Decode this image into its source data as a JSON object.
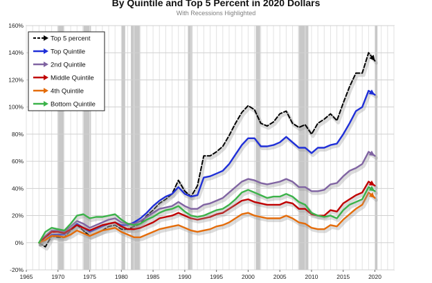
{
  "chart_data": {
    "type": "line",
    "title": "By Quintile and Top 5 Percent in 2020 Dollars",
    "subtitle": "With Recessions Highlighted",
    "xlabel": "",
    "ylabel": "",
    "xlim": [
      1965,
      2023
    ],
    "ylim": [
      -20,
      160
    ],
    "x_ticks": [
      1965,
      1970,
      1975,
      1980,
      1985,
      1990,
      1995,
      2000,
      2005,
      2010,
      2015,
      2020
    ],
    "y_ticks": [
      -20,
      0,
      20,
      40,
      60,
      80,
      100,
      120,
      140,
      160
    ],
    "y_tick_labels": [
      "-20%",
      "0%",
      "20%",
      "40%",
      "60%",
      "80%",
      "100%",
      "120%",
      "140%",
      "160%"
    ],
    "grid": true,
    "legend_position": "top-left",
    "recessions": [
      [
        1969.9,
        1970.9
      ],
      [
        1973.9,
        1975.2
      ],
      [
        1980.0,
        1980.6
      ],
      [
        1981.5,
        1982.9
      ],
      [
        1990.5,
        1991.2
      ],
      [
        2001.2,
        2001.9
      ],
      [
        2007.9,
        2009.5
      ],
      [
        2020.0,
        2020.4
      ]
    ],
    "series": [
      {
        "name": "Top 5 percent",
        "color": "#000000",
        "dashed": true,
        "x": [
          1967,
          1968,
          1969,
          1970,
          1971,
          1972,
          1973,
          1974,
          1975,
          1976,
          1977,
          1978,
          1979,
          1980,
          1981,
          1982,
          1983,
          1984,
          1985,
          1986,
          1987,
          1988,
          1989,
          1990,
          1991,
          1992,
          1993,
          1994,
          1995,
          1996,
          1997,
          1998,
          1999,
          2000,
          2001,
          2002,
          2003,
          2004,
          2005,
          2006,
          2007,
          2008,
          2009,
          2010,
          2011,
          2012,
          2013,
          2014,
          2015,
          2016,
          2017,
          2018,
          2019,
          2020
        ],
        "values": [
          0,
          -3,
          5,
          4,
          4,
          9,
          13,
          9,
          5,
          7,
          9,
          12,
          13,
          10,
          10,
          12,
          14,
          20,
          24,
          29,
          32,
          36,
          46,
          38,
          34,
          42,
          64,
          64,
          67,
          71,
          79,
          88,
          96,
          101,
          98,
          88,
          86,
          89,
          95,
          97,
          88,
          85,
          87,
          80,
          88,
          91,
          95,
          90,
          103,
          115,
          125,
          125,
          140,
          134
        ]
      },
      {
        "name": "Top Quintile",
        "color": "#1f2fd8",
        "dashed": false,
        "x": [
          1967,
          1968,
          1969,
          1970,
          1971,
          1972,
          1973,
          1974,
          1975,
          1976,
          1977,
          1978,
          1979,
          1980,
          1981,
          1982,
          1983,
          1984,
          1985,
          1986,
          1987,
          1988,
          1989,
          1990,
          1991,
          1992,
          1993,
          1994,
          1995,
          1996,
          1997,
          1998,
          1999,
          2000,
          2001,
          2002,
          2003,
          2004,
          2005,
          2006,
          2007,
          2008,
          2009,
          2010,
          2011,
          2012,
          2013,
          2014,
          2015,
          2016,
          2017,
          2018,
          2019,
          2020
        ],
        "values": [
          0,
          2,
          6,
          6,
          6,
          10,
          14,
          11,
          8,
          10,
          12,
          14,
          15,
          13,
          13,
          15,
          18,
          22,
          27,
          31,
          34,
          36,
          41,
          36,
          34,
          35,
          48,
          49,
          51,
          53,
          58,
          65,
          72,
          77,
          77,
          71,
          71,
          72,
          74,
          78,
          74,
          70,
          70,
          66,
          70,
          70,
          72,
          73,
          80,
          88,
          97,
          100,
          112,
          109
        ]
      },
      {
        "name": "2nd Quintile",
        "color": "#8064a2",
        "dashed": false,
        "x": [
          1967,
          1968,
          1969,
          1970,
          1971,
          1972,
          1973,
          1974,
          1975,
          1976,
          1977,
          1978,
          1979,
          1980,
          1981,
          1982,
          1983,
          1984,
          1985,
          1986,
          1987,
          1988,
          1989,
          1990,
          1991,
          1992,
          1993,
          1994,
          1995,
          1996,
          1997,
          1998,
          1999,
          2000,
          2001,
          2002,
          2003,
          2004,
          2005,
          2006,
          2007,
          2008,
          2009,
          2010,
          2011,
          2012,
          2013,
          2014,
          2015,
          2016,
          2017,
          2018,
          2019,
          2020
        ],
        "values": [
          0,
          5,
          9,
          9,
          8,
          12,
          16,
          14,
          11,
          13,
          15,
          17,
          18,
          15,
          14,
          14,
          16,
          19,
          22,
          25,
          26,
          27,
          30,
          27,
          25,
          25,
          28,
          29,
          31,
          33,
          37,
          41,
          45,
          47,
          46,
          44,
          43,
          44,
          45,
          47,
          45,
          41,
          41,
          38,
          38,
          39,
          43,
          44,
          49,
          53,
          55,
          58,
          67,
          64
        ]
      },
      {
        "name": "Middle Quintile",
        "color": "#c00000",
        "dashed": false,
        "x": [
          1967,
          1968,
          1969,
          1970,
          1971,
          1972,
          1973,
          1974,
          1975,
          1976,
          1977,
          1978,
          1979,
          1980,
          1981,
          1982,
          1983,
          1984,
          1985,
          1986,
          1987,
          1988,
          1989,
          1990,
          1991,
          1992,
          1993,
          1994,
          1995,
          1996,
          1997,
          1998,
          1999,
          2000,
          2001,
          2002,
          2003,
          2004,
          2005,
          2006,
          2007,
          2008,
          2009,
          2010,
          2011,
          2012,
          2013,
          2014,
          2015,
          2016,
          2017,
          2018,
          2019,
          2020
        ],
        "values": [
          0,
          4,
          8,
          8,
          7,
          10,
          13,
          11,
          9,
          11,
          13,
          14,
          15,
          12,
          10,
          10,
          11,
          13,
          15,
          18,
          19,
          20,
          22,
          20,
          18,
          17,
          18,
          19,
          21,
          22,
          25,
          28,
          31,
          32,
          30,
          29,
          28,
          28,
          28,
          30,
          29,
          25,
          25,
          21,
          20,
          20,
          24,
          23,
          29,
          32,
          35,
          37,
          45,
          42
        ]
      },
      {
        "name": "4th Quintile",
        "color": "#e46c0a",
        "dashed": false,
        "x": [
          1967,
          1968,
          1969,
          1970,
          1971,
          1972,
          1973,
          1974,
          1975,
          1976,
          1977,
          1978,
          1979,
          1980,
          1981,
          1982,
          1983,
          1984,
          1985,
          1986,
          1987,
          1988,
          1989,
          1990,
          1991,
          1992,
          1993,
          1994,
          1995,
          1996,
          1997,
          1998,
          1999,
          2000,
          2001,
          2002,
          2003,
          2004,
          2005,
          2006,
          2007,
          2008,
          2009,
          2010,
          2011,
          2012,
          2013,
          2014,
          2015,
          2016,
          2017,
          2018,
          2019,
          2020
        ],
        "values": [
          0,
          2,
          5,
          5,
          4,
          6,
          9,
          7,
          5,
          7,
          9,
          10,
          11,
          8,
          6,
          4,
          4,
          6,
          8,
          10,
          11,
          12,
          13,
          11,
          9,
          8,
          9,
          10,
          12,
          13,
          15,
          18,
          21,
          22,
          20,
          19,
          18,
          18,
          18,
          20,
          18,
          15,
          14,
          11,
          10,
          10,
          13,
          12,
          17,
          21,
          25,
          28,
          37,
          33
        ]
      },
      {
        "name": "Bottom Quintile",
        "color": "#3cb34a",
        "dashed": false,
        "x": [
          1967,
          1968,
          1969,
          1970,
          1971,
          1972,
          1973,
          1974,
          1975,
          1976,
          1977,
          1978,
          1979,
          1980,
          1981,
          1982,
          1983,
          1984,
          1985,
          1986,
          1987,
          1988,
          1989,
          1990,
          1991,
          1992,
          1993,
          1994,
          1995,
          1996,
          1997,
          1998,
          1999,
          2000,
          2001,
          2002,
          2003,
          2004,
          2005,
          2006,
          2007,
          2008,
          2009,
          2010,
          2011,
          2012,
          2013,
          2014,
          2015,
          2016,
          2017,
          2018,
          2019,
          2020
        ],
        "values": [
          0,
          8,
          11,
          10,
          9,
          14,
          20,
          21,
          18,
          19,
          19,
          20,
          21,
          17,
          14,
          13,
          14,
          17,
          19,
          22,
          24,
          25,
          27,
          23,
          20,
          19,
          20,
          22,
          24,
          25,
          28,
          32,
          37,
          39,
          37,
          35,
          33,
          34,
          34,
          36,
          34,
          30,
          28,
          22,
          20,
          19,
          20,
          18,
          24,
          28,
          30,
          32,
          41,
          38
        ]
      }
    ]
  }
}
